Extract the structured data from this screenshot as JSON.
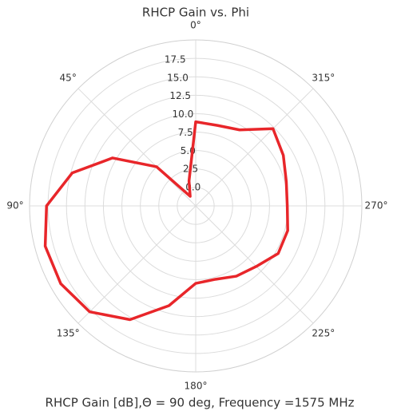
{
  "chart_data": {
    "type": "polar_line",
    "title": "RHCP Gain vs. Phi",
    "xlabel": "RHCP Gain [dB],Θ = 90 deg, Frequency =1575 MHz",
    "theta_zero_location": "N",
    "theta_direction": "counterclockwise",
    "grid": true,
    "x": [
      0,
      15,
      30,
      45,
      60,
      75,
      90,
      105,
      120,
      135,
      150,
      165,
      180,
      195,
      210,
      225,
      240,
      255,
      270,
      285,
      300,
      315,
      330,
      345
    ],
    "series": [
      {
        "name": "RHCP Gain",
        "color": "#e8262a",
        "values": [
          8.9,
          1.0,
          -1.0,
          5.0,
          10.5,
          14.8,
          17.7,
          18.6,
          18.6,
          17.8,
          15.3,
          11.5,
          8.0,
          7.8,
          8.5,
          9.1,
          10.4,
          10.4,
          9.9,
          10.2,
          11.2,
          12.3,
          9.4,
          8.8
        ]
      }
    ],
    "xticks": [
      {
        "value": 0,
        "label": "0°"
      },
      {
        "value": 45,
        "label": "45°"
      },
      {
        "value": 90,
        "label": "90°"
      },
      {
        "value": 135,
        "label": "135°"
      },
      {
        "value": 180,
        "label": "180°"
      },
      {
        "value": 225,
        "label": "225°"
      },
      {
        "value": 270,
        "label": "270°"
      },
      {
        "value": 315,
        "label": "315°"
      }
    ],
    "ylim": [
      -2.5,
      20
    ],
    "yticks": [
      {
        "value": 0,
        "label": "0.0"
      },
      2.5,
      {
        "value": 5,
        "label": "5.0"
      },
      7.5,
      {
        "value": 10,
        "label": "10.0"
      },
      12.5,
      {
        "value": 15,
        "label": "15.0"
      },
      17.5
    ]
  }
}
